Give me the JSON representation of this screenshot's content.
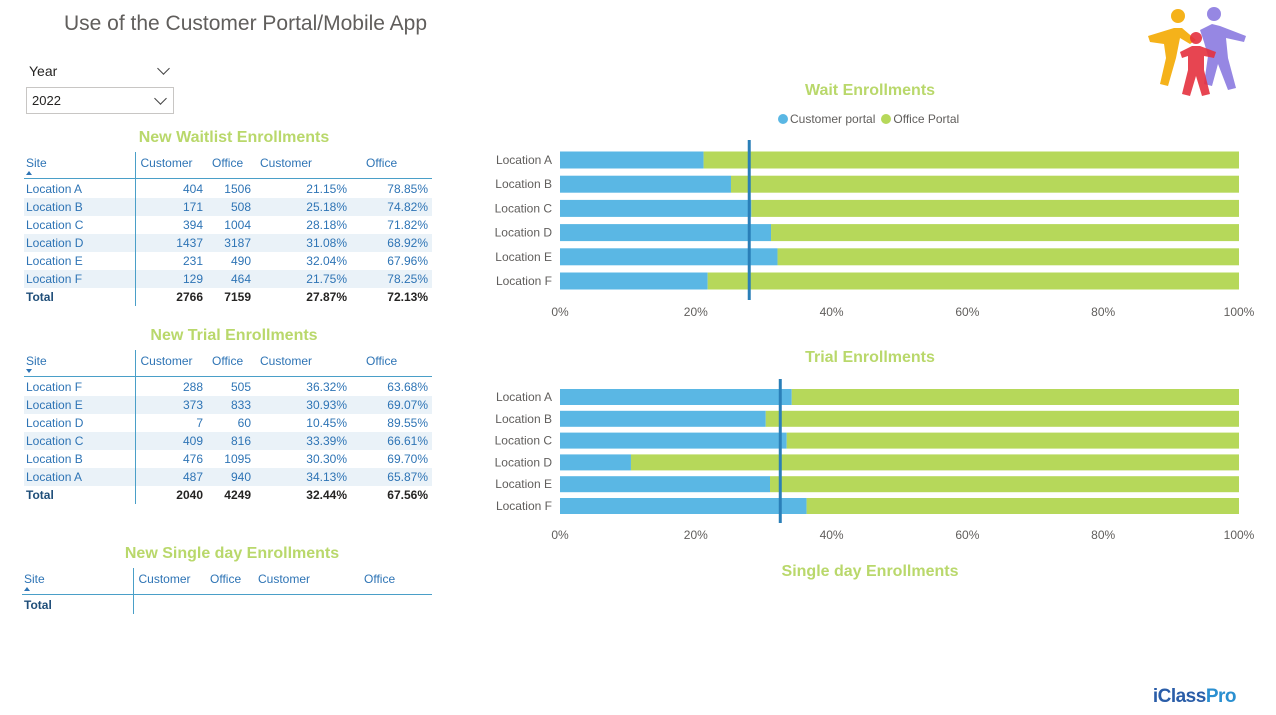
{
  "page": {
    "title": "Use of the Customer Portal/Mobile App"
  },
  "slicer": {
    "label": "Year",
    "selected": "2022"
  },
  "waitlist_table": {
    "title": "New Waitlist Enrollments",
    "headers": [
      "Site",
      "Customer",
      "Office",
      "Customer",
      "Office"
    ],
    "rows": [
      [
        "Location A",
        "404",
        "1506",
        "21.15%",
        "78.85%"
      ],
      [
        "Location B",
        "171",
        "508",
        "25.18%",
        "74.82%"
      ],
      [
        "Location C",
        "394",
        "1004",
        "28.18%",
        "71.82%"
      ],
      [
        "Location D",
        "1437",
        "3187",
        "31.08%",
        "68.92%"
      ],
      [
        "Location E",
        "231",
        "490",
        "32.04%",
        "67.96%"
      ],
      [
        "Location F",
        "129",
        "464",
        "21.75%",
        "78.25%"
      ]
    ],
    "total": [
      "Total",
      "2766",
      "7159",
      "27.87%",
      "72.13%"
    ]
  },
  "trial_table": {
    "title": "New Trial Enrollments",
    "headers": [
      "Site",
      "Customer",
      "Office",
      "Customer",
      "Office"
    ],
    "rows": [
      [
        "Location F",
        "288",
        "505",
        "36.32%",
        "63.68%"
      ],
      [
        "Location E",
        "373",
        "833",
        "30.93%",
        "69.07%"
      ],
      [
        "Location D",
        "7",
        "60",
        "10.45%",
        "89.55%"
      ],
      [
        "Location C",
        "409",
        "816",
        "33.39%",
        "66.61%"
      ],
      [
        "Location B",
        "476",
        "1095",
        "30.30%",
        "69.70%"
      ],
      [
        "Location A",
        "487",
        "940",
        "34.13%",
        "65.87%"
      ]
    ],
    "total": [
      "Total",
      "2040",
      "4249",
      "32.44%",
      "67.56%"
    ]
  },
  "singleday_table": {
    "title": "New Single day Enrollments",
    "headers": [
      "Site",
      "Customer",
      "Office",
      "Customer",
      "Office"
    ],
    "total": [
      "Total"
    ]
  },
  "legend": {
    "customer": "Customer portal",
    "office": "Office Portal"
  },
  "colors": {
    "customer": "#5ab7e4",
    "office": "#b6d85a",
    "avg_line": "#2a7fb8"
  },
  "single_day_chart": {
    "title": "Single day Enrollments"
  },
  "brand": {
    "name_a": "iClass",
    "name_b": "Pro"
  },
  "chart_data": [
    {
      "type": "bar",
      "orientation": "horizontal",
      "stacked": "100%",
      "title": "Wait Enrollments",
      "categories": [
        "Location A",
        "Location B",
        "Location C",
        "Location D",
        "Location E",
        "Location F"
      ],
      "series": [
        {
          "name": "Customer portal",
          "values": [
            21.15,
            25.18,
            28.18,
            31.08,
            32.04,
            21.75
          ]
        },
        {
          "name": "Office Portal",
          "values": [
            78.85,
            74.82,
            71.82,
            68.92,
            67.96,
            78.25
          ]
        }
      ],
      "reference_line": 27.87,
      "xlim": [
        0,
        100
      ],
      "xticks": [
        "0%",
        "20%",
        "40%",
        "60%",
        "80%",
        "100%"
      ],
      "legend": "top"
    },
    {
      "type": "bar",
      "orientation": "horizontal",
      "stacked": "100%",
      "title": "Trial Enrollments",
      "categories": [
        "Location A",
        "Location B",
        "Location C",
        "Location D",
        "Location E",
        "Location F"
      ],
      "series": [
        {
          "name": "Customer portal",
          "values": [
            34.13,
            30.3,
            33.39,
            10.45,
            30.93,
            36.32
          ]
        },
        {
          "name": "Office Portal",
          "values": [
            65.87,
            69.7,
            66.61,
            89.55,
            69.07,
            63.68
          ]
        }
      ],
      "reference_line": 32.44,
      "xlim": [
        0,
        100
      ],
      "xticks": [
        "0%",
        "20%",
        "40%",
        "60%",
        "80%",
        "100%"
      ]
    }
  ]
}
